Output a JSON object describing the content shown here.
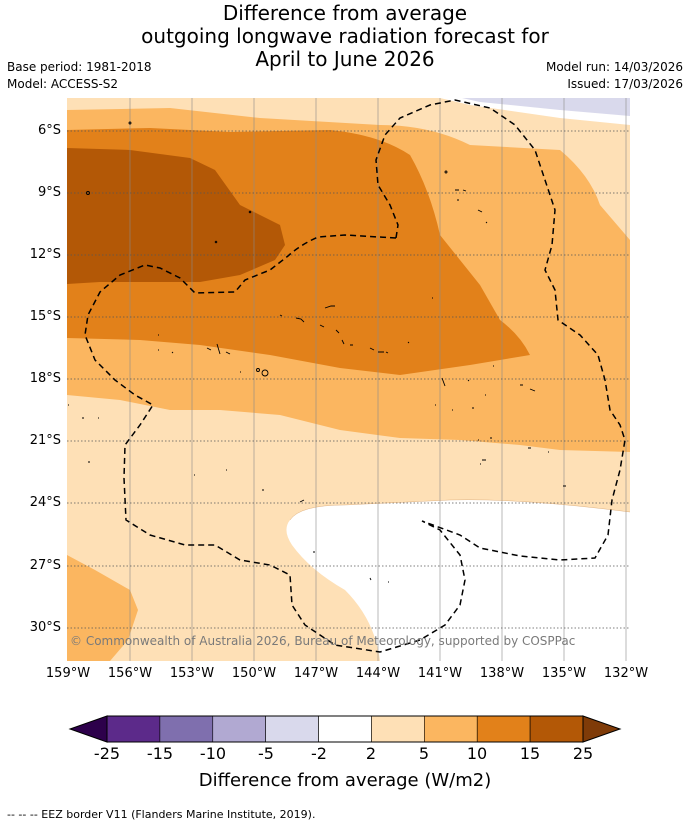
{
  "title": {
    "line1": "Difference from average",
    "line2": "outgoing longwave radiation forecast for",
    "line3": "April to June 2026"
  },
  "meta": {
    "base_period": "Base period: 1981-2018",
    "model": "Model: ACCESS-S2",
    "model_run": "Model run: 14/03/2026",
    "issued": "Issued: 17/03/2026"
  },
  "map": {
    "lat_labels": [
      "6°S",
      "9°S",
      "12°S",
      "15°S",
      "18°S",
      "21°S",
      "24°S",
      "27°S",
      "30°S"
    ],
    "lon_labels": [
      "159°W",
      "156°W",
      "153°W",
      "150°W",
      "147°W",
      "144°W",
      "141°W",
      "138°W",
      "135°W",
      "132°W"
    ],
    "copyright": "© Commonwealth of Australia 2026, Bureau of Meteorology, supported by COSPPac"
  },
  "colorbar": {
    "ticks": [
      "-25",
      "-15",
      "-10",
      "-5",
      "-2",
      "2",
      "5",
      "10",
      "15",
      "25"
    ],
    "colors": [
      "#5c2a8a",
      "#7f6fae",
      "#b1a9d2",
      "#d9d9ec",
      "#ffffff",
      "#fee0b6",
      "#fbb660",
      "#e2811a",
      "#b35806"
    ],
    "under_color": "#2d004b",
    "over_color": "#7f3b08",
    "label": "Difference from average (W/m2)"
  },
  "footer": "-- -- -- EEZ border V11 (Flanders Marine Institute, 2019)."
}
